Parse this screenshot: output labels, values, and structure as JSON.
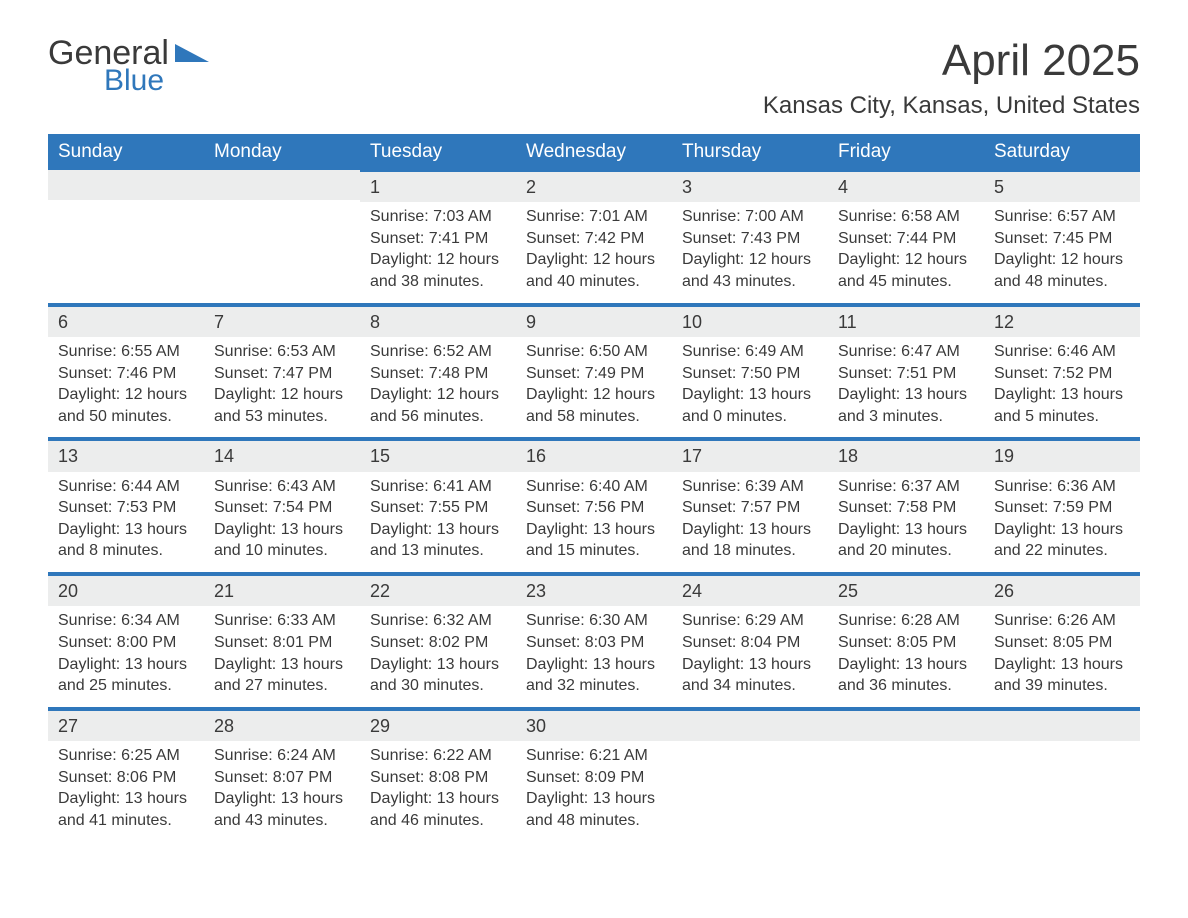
{
  "logo": {
    "line1": "General",
    "line2": "Blue",
    "accent_color": "#2f77bb"
  },
  "title": "April 2025",
  "location": "Kansas City, Kansas, United States",
  "background_color": "#ffffff",
  "header_bg": "#2f77bb",
  "header_fg": "#ffffff",
  "daynum_bg": "#eceded",
  "rule_color": "#2f77bb",
  "text_color": "#3a3a3a",
  "days_of_week": [
    "Sunday",
    "Monday",
    "Tuesday",
    "Wednesday",
    "Thursday",
    "Friday",
    "Saturday"
  ],
  "weeks": [
    [
      null,
      null,
      {
        "n": "1",
        "sunrise": "7:03 AM",
        "sunset": "7:41 PM",
        "daylight": "12 hours and 38 minutes."
      },
      {
        "n": "2",
        "sunrise": "7:01 AM",
        "sunset": "7:42 PM",
        "daylight": "12 hours and 40 minutes."
      },
      {
        "n": "3",
        "sunrise": "7:00 AM",
        "sunset": "7:43 PM",
        "daylight": "12 hours and 43 minutes."
      },
      {
        "n": "4",
        "sunrise": "6:58 AM",
        "sunset": "7:44 PM",
        "daylight": "12 hours and 45 minutes."
      },
      {
        "n": "5",
        "sunrise": "6:57 AM",
        "sunset": "7:45 PM",
        "daylight": "12 hours and 48 minutes."
      }
    ],
    [
      {
        "n": "6",
        "sunrise": "6:55 AM",
        "sunset": "7:46 PM",
        "daylight": "12 hours and 50 minutes."
      },
      {
        "n": "7",
        "sunrise": "6:53 AM",
        "sunset": "7:47 PM",
        "daylight": "12 hours and 53 minutes."
      },
      {
        "n": "8",
        "sunrise": "6:52 AM",
        "sunset": "7:48 PM",
        "daylight": "12 hours and 56 minutes."
      },
      {
        "n": "9",
        "sunrise": "6:50 AM",
        "sunset": "7:49 PM",
        "daylight": "12 hours and 58 minutes."
      },
      {
        "n": "10",
        "sunrise": "6:49 AM",
        "sunset": "7:50 PM",
        "daylight": "13 hours and 0 minutes."
      },
      {
        "n": "11",
        "sunrise": "6:47 AM",
        "sunset": "7:51 PM",
        "daylight": "13 hours and 3 minutes."
      },
      {
        "n": "12",
        "sunrise": "6:46 AM",
        "sunset": "7:52 PM",
        "daylight": "13 hours and 5 minutes."
      }
    ],
    [
      {
        "n": "13",
        "sunrise": "6:44 AM",
        "sunset": "7:53 PM",
        "daylight": "13 hours and 8 minutes."
      },
      {
        "n": "14",
        "sunrise": "6:43 AM",
        "sunset": "7:54 PM",
        "daylight": "13 hours and 10 minutes."
      },
      {
        "n": "15",
        "sunrise": "6:41 AM",
        "sunset": "7:55 PM",
        "daylight": "13 hours and 13 minutes."
      },
      {
        "n": "16",
        "sunrise": "6:40 AM",
        "sunset": "7:56 PM",
        "daylight": "13 hours and 15 minutes."
      },
      {
        "n": "17",
        "sunrise": "6:39 AM",
        "sunset": "7:57 PM",
        "daylight": "13 hours and 18 minutes."
      },
      {
        "n": "18",
        "sunrise": "6:37 AM",
        "sunset": "7:58 PM",
        "daylight": "13 hours and 20 minutes."
      },
      {
        "n": "19",
        "sunrise": "6:36 AM",
        "sunset": "7:59 PM",
        "daylight": "13 hours and 22 minutes."
      }
    ],
    [
      {
        "n": "20",
        "sunrise": "6:34 AM",
        "sunset": "8:00 PM",
        "daylight": "13 hours and 25 minutes."
      },
      {
        "n": "21",
        "sunrise": "6:33 AM",
        "sunset": "8:01 PM",
        "daylight": "13 hours and 27 minutes."
      },
      {
        "n": "22",
        "sunrise": "6:32 AM",
        "sunset": "8:02 PM",
        "daylight": "13 hours and 30 minutes."
      },
      {
        "n": "23",
        "sunrise": "6:30 AM",
        "sunset": "8:03 PM",
        "daylight": "13 hours and 32 minutes."
      },
      {
        "n": "24",
        "sunrise": "6:29 AM",
        "sunset": "8:04 PM",
        "daylight": "13 hours and 34 minutes."
      },
      {
        "n": "25",
        "sunrise": "6:28 AM",
        "sunset": "8:05 PM",
        "daylight": "13 hours and 36 minutes."
      },
      {
        "n": "26",
        "sunrise": "6:26 AM",
        "sunset": "8:05 PM",
        "daylight": "13 hours and 39 minutes."
      }
    ],
    [
      {
        "n": "27",
        "sunrise": "6:25 AM",
        "sunset": "8:06 PM",
        "daylight": "13 hours and 41 minutes."
      },
      {
        "n": "28",
        "sunrise": "6:24 AM",
        "sunset": "8:07 PM",
        "daylight": "13 hours and 43 minutes."
      },
      {
        "n": "29",
        "sunrise": "6:22 AM",
        "sunset": "8:08 PM",
        "daylight": "13 hours and 46 minutes."
      },
      {
        "n": "30",
        "sunrise": "6:21 AM",
        "sunset": "8:09 PM",
        "daylight": "13 hours and 48 minutes."
      },
      null,
      null,
      null
    ]
  ],
  "labels": {
    "sunrise": "Sunrise: ",
    "sunset": "Sunset: ",
    "daylight": "Daylight: "
  }
}
